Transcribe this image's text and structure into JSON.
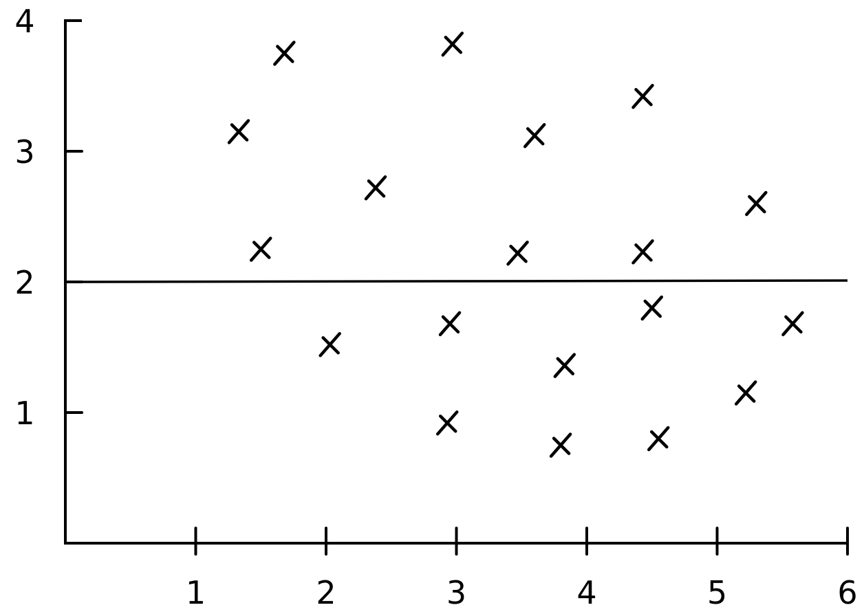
{
  "chart_data": {
    "type": "scatter",
    "title": "",
    "xlabel": "",
    "ylabel": "",
    "xlim": [
      0,
      6
    ],
    "ylim": [
      0,
      4
    ],
    "x_ticks": [
      1,
      2,
      3,
      4,
      5,
      6
    ],
    "y_ticks": [
      1,
      2,
      3,
      4
    ],
    "x_tick_labels": [
      "1",
      "2",
      "3",
      "4",
      "5",
      "6"
    ],
    "y_tick_labels": [
      "1",
      "2",
      "3",
      "4"
    ],
    "grid": false,
    "marker": "x",
    "reference_line": {
      "y": 2
    },
    "points": [
      {
        "x": 1.33,
        "y": 3.15
      },
      {
        "x": 1.68,
        "y": 3.75
      },
      {
        "x": 1.5,
        "y": 2.25
      },
      {
        "x": 2.38,
        "y": 2.72
      },
      {
        "x": 2.03,
        "y": 1.52
      },
      {
        "x": 2.97,
        "y": 3.82
      },
      {
        "x": 2.95,
        "y": 1.68
      },
      {
        "x": 2.93,
        "y": 0.92
      },
      {
        "x": 3.6,
        "y": 3.12
      },
      {
        "x": 3.47,
        "y": 2.22
      },
      {
        "x": 3.83,
        "y": 1.36
      },
      {
        "x": 3.8,
        "y": 0.75
      },
      {
        "x": 4.43,
        "y": 3.42
      },
      {
        "x": 4.43,
        "y": 2.23
      },
      {
        "x": 4.5,
        "y": 1.8
      },
      {
        "x": 4.55,
        "y": 0.8
      },
      {
        "x": 5.3,
        "y": 2.6
      },
      {
        "x": 5.58,
        "y": 1.68
      },
      {
        "x": 5.22,
        "y": 1.15
      }
    ]
  }
}
